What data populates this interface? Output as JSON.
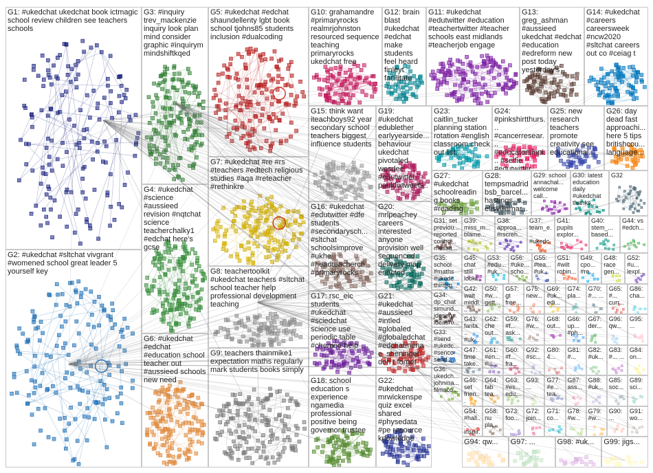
{
  "groups": [
    {
      "id": "g1",
      "text": "G1: #ukedchat ukedchat book ictmagic school review children see teachers schools",
      "color": "#1a237e"
    },
    {
      "id": "g2",
      "text": "G2: #ukedchat #sltchat vivgrant #womened school great leader 5 yourself key",
      "color": "#1f6fb5"
    },
    {
      "id": "g3",
      "text": "G3: #inquiry trev_mackenzie inquiry look plan mind consider graphic #inquirym mindshiftkqed",
      "color": "#2e7d32"
    },
    {
      "id": "g4",
      "text": "G4: #ukedchat #science #aussieed revision #nqtchat science teacherchalky1 #edchat here's gcse",
      "color": "#388e3c"
    },
    {
      "id": "g5",
      "text": "G5: #ukedchat #edchat shaundellenty lgbt book school tjohns85 students inclusion #dualcoding",
      "color": "#b71c1c"
    },
    {
      "id": "g6",
      "text": "G6: #ukedchat #edchat #education school teacher out #aussieed schools new need",
      "color": "#e08a3c"
    },
    {
      "id": "g7",
      "text": "G7: #ukedchat #re #rs #teachers #edtech religious studies #aqa #reteacher #rethinkre",
      "color": "#d4b000"
    },
    {
      "id": "g8",
      "text": "G8: teachertoolkit #ukedchat teachers #sltchat school teacher help professional development teaching",
      "color": "#8e8e8e"
    },
    {
      "id": "g9",
      "text": "G9: teachers thainmike1 expectation maths regularly mark students books simply",
      "color": "#7a7a7a"
    },
    {
      "id": "g10",
      "text": "G10: grahamandre #primaryrocks realmrjohnston resourced sequence teaching primaryrocks ukedchat free",
      "color": "#c2185b"
    },
    {
      "id": "g11",
      "text": "G11: #ukedchat #edutwitter #education #teachertwitter #teacher schools east midlands #teacherjob engage",
      "color": "#7b1fa2"
    },
    {
      "id": "g12",
      "text": "G12: brain blast #ukedchat #edchat make students feel heard finleyt facilitate",
      "color": "#00838f"
    },
    {
      "id": "g13",
      "text": "G13: greg_ashman #aussieed ukedchat #edchat #education #edreform new post today yesterday's",
      "color": "#5d4037"
    },
    {
      "id": "g14",
      "text": "G14: #ukedchat #careers careersweek #ncw2020 #sltchat careers out co #ceiag t",
      "color": "#0277bd"
    },
    {
      "id": "g15",
      "text": "G15: think want iteachboys92 year secondary school teachers biggest influence students",
      "color": "#9e9e9e"
    },
    {
      "id": "g16",
      "text": "G16: #ukedchat #edutwitter #dfe students #secondarysch... #sltchat schoolsimprove #ukhe #headteacherch... #primaryrocks",
      "color": "#8d6e63"
    },
    {
      "id": "g17",
      "text": "G17: rsc_eic students #ukedchat #sciedchat science use periodic table #chemed help",
      "color": "#6a1b9a"
    },
    {
      "id": "g18",
      "text": "G18: school education s experience ngamedia professional positive being governor trustee",
      "color": "#558b2f"
    },
    {
      "id": "g19",
      "text": "G19: #ukedchat edublether earlyyearside... behaviour ukedchat pivotaled wosdec #edutwitter pauldixtweets...",
      "color": "#ad1457"
    },
    {
      "id": "g20",
      "text": "G20: mrlpeachey careers interested anyone provision well sequenced delivery map enacted",
      "color": "#00695c"
    },
    {
      "id": "g21",
      "text": "G21: #ukedchat #aussieed #intled #globaled #globaledchat #edchatmena e_sheninger don t forget",
      "color": "#c62828"
    },
    {
      "id": "g22",
      "text": "G22: #ukedchat mrwickenspe quiz excel shared #physedata #pe resource knowledge",
      "color": "#283593"
    },
    {
      "id": "g23",
      "text": "G23: caitlin_tucker planning station rotation #english classroom check out list...",
      "color": "#0097a7"
    },
    {
      "id": "g24",
      "text": "G24: #pinkshirtthurs... #cancerresear... #educatorsinpi... #selfie #edutwitter...",
      "color": "#e91e63"
    },
    {
      "id": "g25",
      "text": "G25: new research teachers promote creativity see educational...",
      "color": "#3949ab"
    },
    {
      "id": "g26",
      "text": "G26: day dead fast approachi... here 5 tips britishcou... language...",
      "color": "#f57c00"
    },
    {
      "id": "g27",
      "text": "G27: #ukedchat schoolreading books #reading call...",
      "color": "#689f38"
    },
    {
      "id": "g28",
      "text": "G28: tempsmadrid bsb_barcel... hastings_s... elisvillamar...",
      "color": "#455a64"
    },
    {
      "id": "g29",
      "text": "G29: school annachal... welcome call...",
      "color": "#8e24aa"
    },
    {
      "id": "g30",
      "text": "G30: latest education daily #ukedchat thanks...",
      "color": "#00897b"
    },
    {
      "id": "g31",
      "text": "G31: set previou... reported contro... messa...",
      "color": "#6d4c41"
    },
    {
      "id": "g32",
      "text": "G32",
      "color": "#546e7a"
    },
    {
      "id": "g33",
      "text": "G33: #send #ukedc... #senco send...",
      "color": "#1565c0"
    },
    {
      "id": "g34",
      "text": "G34: dp_chat simund... jdeseg... ideasro...",
      "color": "#4e342e"
    },
    {
      "id": "g35",
      "text": "G35: school #maths #ukedc... thirdsp...",
      "color": "#0288d1"
    },
    {
      "id": "g36",
      "text": "G36: ukedch... johnma... filmsco...",
      "color": "#7cb342"
    },
    {
      "id": "g37",
      "text": "G37: team_e... #ukedc...",
      "color": "#f4511e"
    },
    {
      "id": "g38",
      "text": "G38: approa... #rscreh...",
      "color": "#5e35b1"
    },
    {
      "id": "g39",
      "text": "G39: miss_m... blame...",
      "color": "#c0ca33"
    },
    {
      "id": "g40",
      "text": "G40: stem_... based...",
      "color": "#26a69a"
    },
    {
      "id": "g41",
      "text": "G41: pupils explor...",
      "color": "#ec407a"
    },
    {
      "id": "g42",
      "text": "G42: wait middl... s...",
      "color": "#8d6e63"
    },
    {
      "id": "g43",
      "text": "G43: fanta... #uk... mrsp...",
      "color": "#42a5f5"
    },
    {
      "id": "g44",
      "text": "G44: vs #edch...",
      "color": "#66bb6a"
    },
    {
      "id": "g45",
      "text": "G45: chat still looki...",
      "color": "#ab47bc"
    },
    {
      "id": "g46",
      "text": "G46: set frien...",
      "color": "#ffa726"
    },
    {
      "id": "g47",
      "text": "G47: time take...",
      "color": "#78909c"
    },
    {
      "id": "g48",
      "text": "G48: race gen...",
      "color": "#d4e157"
    },
    {
      "id": "g49",
      "text": "G49: cpo... #re...",
      "color": "#29b6f6"
    },
    {
      "id": "g50",
      "text": "G50: #w... gett...",
      "color": "#9ccc65"
    },
    {
      "id": "g51",
      "text": "G51: #wilt robin...",
      "color": "#ff7043"
    },
    {
      "id": "g52",
      "text": "G52: #u... lexpl...",
      "color": "#7e57c2"
    },
    {
      "id": "g53",
      "text": "G53: #edu... #uk...",
      "color": "#26c6da"
    },
    {
      "id": "g54",
      "text": "G54: #hall... inspir...",
      "color": "#ef5350"
    },
    {
      "id": "g55",
      "text": "G55: #tea... #uk...",
      "color": "#5c6bc0"
    },
    {
      "id": "g56",
      "text": "G56: #uke... scho...",
      "color": "#8bc34a"
    },
    {
      "id": "g57",
      "text": "G57: gt free...",
      "color": "#ff8a65"
    },
    {
      "id": "g58",
      "text": "G58: nu pla...",
      "color": "#a1887f"
    },
    {
      "id": "g59",
      "text": "G59: #f... ask...",
      "color": "#4db6ac"
    },
    {
      "id": "g60",
      "text": "G60: #f... fra...",
      "color": "#f06292"
    },
    {
      "id": "g61",
      "text": "G61: #en... #u...",
      "color": "#9575cd"
    },
    {
      "id": "g62",
      "text": "G62: che out...",
      "color": "#4fc3f7"
    },
    {
      "id": "g63",
      "text": "G63: #es... edu...",
      "color": "#aed581"
    },
    {
      "id": "g64",
      "text": "G64: fab tea...",
      "color": "#ffb74d"
    },
    {
      "id": "g65",
      "text": "G65: #... curr...",
      "color": "#e57373"
    },
    {
      "id": "g66",
      "text": "G66: up... #ph...",
      "color": "#64b5f6"
    },
    {
      "id": "g67",
      "text": "G67: der...",
      "color": "#81c784"
    },
    {
      "id": "g68",
      "text": "G68: out...",
      "color": "#ba68c8"
    },
    {
      "id": "g69",
      "text": "G69: #uk... edi...",
      "color": "#ffd54f"
    },
    {
      "id": "g70",
      "text": "G70: #... ...",
      "color": "#90a4ae"
    },
    {
      "id": "g71",
      "text": "G71: co...",
      "color": "#4dd0e1"
    },
    {
      "id": "g72",
      "text": "G72: join...",
      "color": "#f48fb1"
    },
    {
      "id": "g73",
      "text": "G73: foo...",
      "color": "#b39ddb"
    },
    {
      "id": "g74",
      "text": "G74: pla...",
      "color": "#80cbc4"
    },
    {
      "id": "g75",
      "text": "G75: new...",
      "color": "#ffab91"
    },
    {
      "id": "g76",
      "text": "G76: #w...",
      "color": "#bcaaa4"
    },
    {
      "id": "g77",
      "text": "G77: #e... tea...",
      "color": "#9fa8da"
    },
    {
      "id": "g78",
      "text": "G78: #w...",
      "color": "#c5e1a5"
    },
    {
      "id": "g79",
      "text": "G79: #w...",
      "color": "#ffcc80"
    },
    {
      "id": "g80",
      "text": "G80: 4...",
      "color": "#ef9a9a"
    },
    {
      "id": "g81",
      "text": "G81: #...",
      "color": "#90caf9"
    },
    {
      "id": "g82",
      "text": "G82: #uk...",
      "color": "#a5d6a7"
    },
    {
      "id": "g83",
      "text": "G83: #... ...",
      "color": "#ce93d8"
    },
    {
      "id": "g84",
      "text": "G84: on...",
      "color": "#fff59d"
    },
    {
      "id": "g85",
      "text": "G85: soc...",
      "color": "#b0bec5"
    },
    {
      "id": "g86",
      "text": "G86: cha...",
      "color": "#80deea"
    },
    {
      "id": "g87",
      "text": "G87: ass...",
      "color": "#f8bbd0"
    },
    {
      "id": "g88",
      "text": "G88: #uk...",
      "color": "#d1c4e9"
    },
    {
      "id": "g89",
      "text": "G89: sci...",
      "color": "#b2dfdb"
    },
    {
      "id": "g90",
      "text": "G90: ...",
      "color": "#ffccbc"
    },
    {
      "id": "g91",
      "text": "G91: wo...",
      "color": "#d7ccc8"
    },
    {
      "id": "g92",
      "text": "G92: #sc...",
      "color": "#c5cae9"
    },
    {
      "id": "g93",
      "text": "G93: ...",
      "color": "#dcedc8"
    },
    {
      "id": "g94",
      "text": "G94: qw...",
      "color": "#ffe0b2"
    },
    {
      "id": "g95",
      "text": "G95: ...",
      "color": "#ffcdd2"
    },
    {
      "id": "g96",
      "text": "G96: qw...",
      "color": "#bbdefb"
    },
    {
      "id": "g97",
      "text": "G97: ...",
      "color": "#c8e6c9"
    },
    {
      "id": "g98",
      "text": "G98: #uk...",
      "color": "#e1bee7"
    },
    {
      "id": "g99",
      "text": "G99: jigs...",
      "color": "#fff9c4"
    }
  ]
}
